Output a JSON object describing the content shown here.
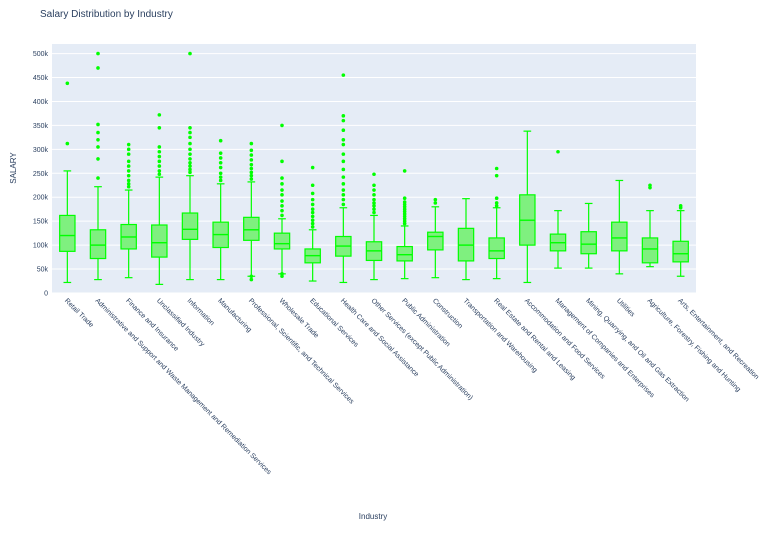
{
  "chart_data": {
    "type": "box",
    "title": "Salary Distribution by Industry",
    "xlabel": "Industry",
    "ylabel": "SALARY",
    "ylim": [
      0,
      520000
    ],
    "yticks": [
      0,
      50000,
      100000,
      150000,
      200000,
      250000,
      300000,
      350000,
      400000,
      450000,
      500000
    ],
    "ytick_labels": [
      "0",
      "50k",
      "100k",
      "150k",
      "200k",
      "250k",
      "300k",
      "350k",
      "400k",
      "450k",
      "500k"
    ],
    "color": "#00ff00",
    "fill_color": "#7ff07f",
    "plot_bg": "#e5ecf6",
    "grid": true,
    "boxes": [
      {
        "category": "Retail Trade",
        "min": 22000,
        "q1": 87000,
        "median": 120000,
        "q3": 162000,
        "max": 255000,
        "outliers": [
          312000,
          438000
        ]
      },
      {
        "category": "Administrative and Support and Waste Management and Remediation Services",
        "min": 28000,
        "q1": 72000,
        "median": 100000,
        "q3": 132000,
        "max": 222000,
        "outliers": [
          240000,
          280000,
          305000,
          320000,
          335000,
          352000,
          470000,
          500000
        ]
      },
      {
        "category": "Finance and Insurance",
        "min": 32000,
        "q1": 92000,
        "median": 117000,
        "q3": 143000,
        "max": 215000,
        "outliers": [
          222000,
          228000,
          235000,
          245000,
          255000,
          265000,
          275000,
          290000,
          300000,
          310000
        ]
      },
      {
        "category": "Unclassified Industry",
        "min": 18000,
        "q1": 75000,
        "median": 105000,
        "q3": 142000,
        "max": 242000,
        "outliers": [
          248000,
          255000,
          265000,
          275000,
          285000,
          295000,
          305000,
          345000,
          372000
        ]
      },
      {
        "category": "Information",
        "min": 28000,
        "q1": 112000,
        "median": 133000,
        "q3": 167000,
        "max": 245000,
        "outliers": [
          252000,
          258000,
          265000,
          272000,
          280000,
          290000,
          300000,
          312000,
          325000,
          335000,
          345000,
          500000
        ]
      },
      {
        "category": "Manufacturing",
        "min": 28000,
        "q1": 95000,
        "median": 122000,
        "q3": 148000,
        "max": 228000,
        "outliers": [
          235000,
          242000,
          250000,
          262000,
          272000,
          282000,
          292000,
          318000
        ]
      },
      {
        "category": "Professional, Scientific, and Technical Services",
        "min": 35000,
        "q1": 110000,
        "median": 132000,
        "q3": 158000,
        "max": 232000,
        "outliers": [
          28000,
          35000,
          238000,
          245000,
          252000,
          260000,
          268000,
          278000,
          288000,
          298000,
          312000
        ]
      },
      {
        "category": "Wholesale Trade",
        "min": 40000,
        "q1": 92000,
        "median": 103000,
        "q3": 125000,
        "max": 155000,
        "outliers": [
          35000,
          40000,
          162000,
          172000,
          182000,
          192000,
          205000,
          215000,
          228000,
          240000,
          275000,
          350000
        ]
      },
      {
        "category": "Educational Services",
        "min": 25000,
        "q1": 63000,
        "median": 78000,
        "q3": 92000,
        "max": 132000,
        "outliers": [
          138000,
          145000,
          152000,
          160000,
          168000,
          175000,
          185000,
          195000,
          208000,
          225000,
          262000
        ]
      },
      {
        "category": "Health Care and Social Assistance",
        "min": 22000,
        "q1": 77000,
        "median": 98000,
        "q3": 118000,
        "max": 178000,
        "outliers": [
          185000,
          195000,
          205000,
          215000,
          228000,
          242000,
          258000,
          275000,
          290000,
          310000,
          320000,
          340000,
          360000,
          370000,
          455000
        ]
      },
      {
        "category": "Other Services (except Public Administration)",
        "min": 28000,
        "q1": 68000,
        "median": 88000,
        "q3": 107000,
        "max": 162000,
        "outliers": [
          168000,
          175000,
          182000,
          188000,
          195000,
          205000,
          215000,
          225000,
          248000
        ]
      },
      {
        "category": "Public Administration",
        "min": 30000,
        "q1": 67000,
        "median": 80000,
        "q3": 97000,
        "max": 140000,
        "outliers": [
          145000,
          150000,
          155000,
          160000,
          165000,
          170000,
          175000,
          180000,
          185000,
          190000,
          198000,
          255000
        ]
      },
      {
        "category": "Construction",
        "min": 32000,
        "q1": 90000,
        "median": 118000,
        "q3": 127000,
        "max": 180000,
        "outliers": [
          188000,
          195000
        ]
      },
      {
        "category": "Transportation and Warehousing",
        "min": 28000,
        "q1": 67000,
        "median": 100000,
        "q3": 135000,
        "max": 197000,
        "outliers": []
      },
      {
        "category": "Real Estate and Rental and Leasing",
        "min": 30000,
        "q1": 72000,
        "median": 88000,
        "q3": 115000,
        "max": 178000,
        "outliers": [
          182000,
          188000,
          198000,
          245000,
          260000
        ]
      },
      {
        "category": "Accommodation and Food Services",
        "min": 22000,
        "q1": 100000,
        "median": 152000,
        "q3": 205000,
        "max": 338000,
        "outliers": []
      },
      {
        "category": "Management of Companies and Enterprises",
        "min": 52000,
        "q1": 88000,
        "median": 105000,
        "q3": 123000,
        "max": 172000,
        "outliers": [
          295000
        ]
      },
      {
        "category": "Mining, Quarrying, and Oil and Gas Extraction",
        "min": 52000,
        "q1": 82000,
        "median": 102000,
        "q3": 128000,
        "max": 187000,
        "outliers": []
      },
      {
        "category": "Utilities",
        "min": 40000,
        "q1": 88000,
        "median": 115000,
        "q3": 148000,
        "max": 235000,
        "outliers": []
      },
      {
        "category": "Agriculture, Forestry, Fishing and Hunting",
        "min": 55000,
        "q1": 63000,
        "median": 92000,
        "q3": 115000,
        "max": 172000,
        "outliers": [
          220000,
          225000
        ]
      },
      {
        "category": "Arts, Entertainment, and Recreation",
        "min": 35000,
        "q1": 65000,
        "median": 82000,
        "q3": 108000,
        "max": 172000,
        "outliers": [
          178000,
          182000
        ]
      }
    ]
  }
}
